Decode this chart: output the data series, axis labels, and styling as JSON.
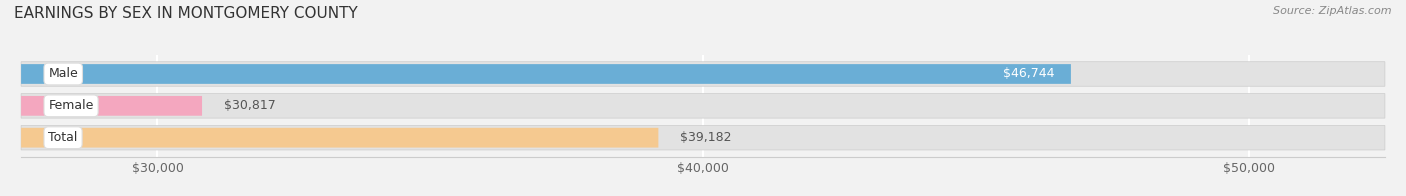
{
  "title": "EARNINGS BY SEX IN MONTGOMERY COUNTY",
  "source": "Source: ZipAtlas.com",
  "categories": [
    "Male",
    "Female",
    "Total"
  ],
  "values": [
    46744,
    30817,
    39182
  ],
  "bar_colors": [
    "#6aaed6",
    "#f4a7bf",
    "#f5c990"
  ],
  "bar_labels": [
    "$46,744",
    "$30,817",
    "$39,182"
  ],
  "label_inside": [
    true,
    false,
    false
  ],
  "xlim_min": 27500,
  "xlim_max": 52500,
  "xticks": [
    30000,
    40000,
    50000
  ],
  "xtick_labels": [
    "$30,000",
    "$40,000",
    "$50,000"
  ],
  "background_color": "#f2f2f2",
  "bar_bg_color": "#e2e2e2",
  "title_fontsize": 11,
  "tick_fontsize": 9,
  "bar_height": 0.62
}
